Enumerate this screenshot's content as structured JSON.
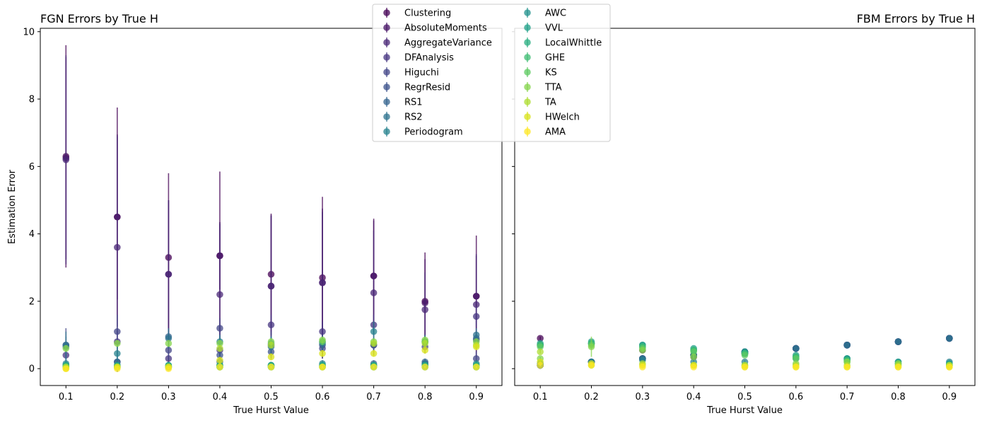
{
  "chart_data": [
    {
      "type": "scatter",
      "title": "FGN Errors by True H",
      "xlabel": "True Hurst Value",
      "ylabel": "Estimation Error",
      "xlim": [
        0.05,
        0.95
      ],
      "ylim": [
        -0.5,
        10.1
      ],
      "xticks": [
        "0.1",
        "0.2",
        "0.3",
        "0.4",
        "0.5",
        "0.6",
        "0.7",
        "0.8",
        "0.9"
      ],
      "yticks": [
        "0",
        "2",
        "4",
        "6",
        "8",
        "10"
      ],
      "x": [
        0.1,
        0.2,
        0.3,
        0.4,
        0.5,
        0.6,
        0.7,
        0.8,
        0.9
      ],
      "legend_position": "top-center",
      "series": [
        {
          "name": "Clustering",
          "color": "#440154",
          "y": [
            6.3,
            4.5,
            3.3,
            3.35,
            2.8,
            2.7,
            2.75,
            2.0,
            2.15
          ],
          "err": [
            3.3,
            3.25,
            2.5,
            2.5,
            1.8,
            2.4,
            1.7,
            1.45,
            1.8
          ]
        },
        {
          "name": "AbsoluteMoments",
          "color": "#471365",
          "y": [
            6.25,
            4.5,
            2.8,
            3.35,
            2.45,
            2.55,
            2.75,
            1.95,
            2.15
          ],
          "err": [
            3.0,
            2.45,
            2.2,
            1.0,
            2.1,
            2.2,
            1.65,
            1.3,
            1.2
          ]
        },
        {
          "name": "AggregateVariance",
          "color": "#482576",
          "y": [
            6.2,
            3.6,
            2.8,
            2.2,
            2.45,
            2.55,
            2.25,
            1.75,
            1.9
          ],
          "err": [
            3.1,
            3.3,
            2.2,
            2.1,
            2.1,
            2.1,
            1.85,
            1.1,
            1.5
          ]
        },
        {
          "name": "DFAnalysis",
          "color": "#463480",
          "y": [
            0.4,
            0.8,
            0.3,
            0.55,
            1.3,
            1.1,
            1.3,
            0.8,
            1.55
          ],
          "err": [
            0.3,
            0.3,
            0.2,
            0.3,
            0.3,
            0.3,
            0.3,
            0.2,
            0.3
          ]
        },
        {
          "name": "Higuchi",
          "color": "#414487",
          "y": [
            0.7,
            1.1,
            0.55,
            1.2,
            0.7,
            0.6,
            0.7,
            0.65,
            0.3
          ],
          "err": [
            0.5,
            0.5,
            0.3,
            0.3,
            0.4,
            0.3,
            0.2,
            0.2,
            0.2
          ]
        },
        {
          "name": "RegrResid",
          "color": "#3b528b",
          "y": [
            0.1,
            0.2,
            0.05,
            0.4,
            0.5,
            0.7,
            0.7,
            0.15,
            0.85
          ],
          "err": [
            0.1,
            0.1,
            0.05,
            0.1,
            0.2,
            0.2,
            0.2,
            0.1,
            0.2
          ]
        },
        {
          "name": "RS1",
          "color": "#33638d",
          "y": [
            0.65,
            0.2,
            0.95,
            0.2,
            0.1,
            0.8,
            0.15,
            0.2,
            0.9
          ],
          "err": [
            0.3,
            0.3,
            0.2,
            0.2,
            0.1,
            0.2,
            0.1,
            0.1,
            0.2
          ]
        },
        {
          "name": "RS2",
          "color": "#2c728e",
          "y": [
            0.7,
            0.1,
            0.9,
            0.1,
            0.65,
            0.75,
            0.1,
            0.15,
            1.0
          ],
          "err": [
            0.4,
            0.15,
            0.3,
            0.15,
            0.3,
            0.2,
            0.1,
            0.1,
            0.2
          ]
        },
        {
          "name": "Periodogram",
          "color": "#26828e",
          "y": [
            0.15,
            0.45,
            0.1,
            0.8,
            0.75,
            0.15,
            1.1,
            0.8,
            0.15
          ],
          "err": [
            0.15,
            0.2,
            0.1,
            0.2,
            0.2,
            0.1,
            0.3,
            0.2,
            0.1
          ]
        },
        {
          "name": "AWC",
          "color": "#21918c",
          "y": [
            0.1,
            0.05,
            0.05,
            0.1,
            0.1,
            0.1,
            0.1,
            0.1,
            0.1
          ],
          "err": [
            0.05,
            0.05,
            0.05,
            0.05,
            0.05,
            0.05,
            0.05,
            0.05,
            0.05
          ]
        },
        {
          "name": "VVL",
          "color": "#1fa088",
          "y": [
            0.05,
            0.05,
            0.05,
            0.05,
            0.05,
            0.05,
            0.05,
            0.05,
            0.05
          ],
          "err": [
            0.03,
            0.03,
            0.03,
            0.03,
            0.03,
            0.03,
            0.03,
            0.03,
            0.03
          ]
        },
        {
          "name": "LocalWhittle",
          "color": "#28ae80",
          "y": [
            0.1,
            0.1,
            0.1,
            0.1,
            0.1,
            0.1,
            0.1,
            0.1,
            0.1
          ],
          "err": [
            0.05,
            0.05,
            0.05,
            0.05,
            0.05,
            0.05,
            0.05,
            0.05,
            0.05
          ]
        },
        {
          "name": "GHE",
          "color": "#3fbc73",
          "y": [
            0.05,
            0.05,
            0.05,
            0.05,
            0.05,
            0.05,
            0.05,
            0.05,
            0.05
          ],
          "err": [
            0.03,
            0.03,
            0.03,
            0.03,
            0.03,
            0.03,
            0.03,
            0.03,
            0.03
          ]
        },
        {
          "name": "KS",
          "color": "#5ec962",
          "y": [
            0.05,
            0.05,
            0.05,
            0.05,
            0.05,
            0.8,
            0.05,
            0.8,
            0.05
          ],
          "err": [
            0.03,
            0.03,
            0.03,
            0.03,
            0.03,
            0.1,
            0.03,
            0.1,
            0.03
          ]
        },
        {
          "name": "TTA",
          "color": "#84d44b",
          "y": [
            0.6,
            0.75,
            0.75,
            0.75,
            0.8,
            0.85,
            0.8,
            0.85,
            0.8
          ],
          "err": [
            0.1,
            0.1,
            0.1,
            0.1,
            0.1,
            0.1,
            0.1,
            0.1,
            0.1
          ]
        },
        {
          "name": "TA",
          "color": "#addc30",
          "y": [
            0.05,
            0.05,
            0.05,
            0.6,
            0.7,
            0.05,
            0.75,
            0.75,
            0.7
          ],
          "err": [
            0.05,
            0.05,
            0.05,
            0.1,
            0.1,
            0.05,
            0.1,
            0.1,
            0.1
          ]
        },
        {
          "name": "HWelch",
          "color": "#d8e219",
          "y": [
            0.0,
            0.05,
            0.05,
            0.25,
            0.35,
            0.45,
            0.45,
            0.55,
            0.65
          ],
          "err": [
            0.05,
            0.05,
            0.05,
            0.1,
            0.1,
            0.1,
            0.1,
            0.1,
            0.1
          ]
        },
        {
          "name": "AMA",
          "color": "#fde725",
          "y": [
            0.0,
            0.0,
            0.0,
            0.05,
            0.05,
            0.05,
            0.05,
            0.05,
            0.05
          ],
          "err": [
            0.03,
            0.03,
            0.03,
            0.03,
            0.03,
            0.03,
            0.03,
            0.03,
            0.03
          ]
        }
      ]
    },
    {
      "type": "scatter",
      "title": "FBM Errors by True H",
      "xlabel": "True Hurst Value",
      "ylabel": "",
      "xlim": [
        0.05,
        0.95
      ],
      "ylim": [
        -0.5,
        10.1
      ],
      "xticks": [
        "0.1",
        "0.2",
        "0.3",
        "0.4",
        "0.5",
        "0.6",
        "0.7",
        "0.8",
        "0.9"
      ],
      "shared_y": true,
      "x": [
        0.1,
        0.2,
        0.3,
        0.4,
        0.5,
        0.6,
        0.7,
        0.8,
        0.9
      ],
      "series": [
        {
          "name": "Clustering",
          "color": "#440154",
          "y": [
            0.9,
            0.75,
            0.55,
            0.35,
            0.45,
            0.6,
            0.7,
            0.8,
            0.9
          ],
          "err": [
            0.05,
            0.05,
            0.05,
            0.05,
            0.05,
            0.05,
            0.05,
            0.05,
            0.05
          ]
        },
        {
          "name": "AbsoluteMoments",
          "color": "#471365",
          "y": [
            0.1,
            0.2,
            0.3,
            0.4,
            0.45,
            0.6,
            0.7,
            0.8,
            0.9
          ],
          "err": [
            0.05,
            0.05,
            0.05,
            0.05,
            0.05,
            0.05,
            0.05,
            0.05,
            0.05
          ]
        },
        {
          "name": "AggregateVariance",
          "color": "#482576",
          "y": [
            0.1,
            0.2,
            0.3,
            0.4,
            0.5,
            0.6,
            0.7,
            0.8,
            0.9
          ],
          "err": [
            0.05,
            0.05,
            0.05,
            0.05,
            0.05,
            0.05,
            0.05,
            0.05,
            0.05
          ]
        },
        {
          "name": "DFAnalysis",
          "color": "#463480",
          "y": [
            0.7,
            0.2,
            0.3,
            0.4,
            0.5,
            0.6,
            0.7,
            0.8,
            0.9
          ],
          "err": [
            0.05,
            0.05,
            0.05,
            0.05,
            0.05,
            0.05,
            0.05,
            0.05,
            0.05
          ]
        },
        {
          "name": "Higuchi",
          "color": "#414487",
          "y": [
            0.1,
            0.2,
            0.3,
            0.4,
            0.5,
            0.6,
            0.7,
            0.8,
            0.9
          ],
          "err": [
            0.05,
            0.05,
            0.05,
            0.05,
            0.05,
            0.05,
            0.05,
            0.05,
            0.05
          ]
        },
        {
          "name": "RegrResid",
          "color": "#3b528b",
          "y": [
            0.1,
            0.2,
            0.3,
            0.4,
            0.5,
            0.6,
            0.7,
            0.8,
            0.9
          ],
          "err": [
            0.05,
            0.05,
            0.05,
            0.05,
            0.05,
            0.05,
            0.05,
            0.05,
            0.05
          ]
        },
        {
          "name": "RS1",
          "color": "#33638d",
          "y": [
            0.1,
            0.2,
            0.3,
            0.4,
            0.5,
            0.6,
            0.7,
            0.8,
            0.9
          ],
          "err": [
            0.05,
            0.05,
            0.05,
            0.05,
            0.05,
            0.05,
            0.05,
            0.05,
            0.05
          ]
        },
        {
          "name": "RS2",
          "color": "#2c728e",
          "y": [
            0.1,
            0.2,
            0.3,
            0.4,
            0.5,
            0.6,
            0.7,
            0.8,
            0.9
          ],
          "err": [
            0.05,
            0.05,
            0.05,
            0.05,
            0.05,
            0.05,
            0.05,
            0.05,
            0.05
          ]
        },
        {
          "name": "Periodogram",
          "color": "#26828e",
          "y": [
            0.15,
            0.2,
            0.25,
            0.2,
            0.2,
            0.3,
            0.3,
            0.2,
            0.2
          ],
          "err": [
            0.05,
            0.05,
            0.05,
            0.05,
            0.05,
            0.05,
            0.05,
            0.05,
            0.05
          ]
        },
        {
          "name": "AWC",
          "color": "#21918c",
          "y": [
            0.7,
            0.75,
            0.7,
            0.55,
            0.45,
            0.35,
            0.3,
            0.15,
            0.15
          ],
          "err": [
            0.05,
            0.05,
            0.05,
            0.05,
            0.05,
            0.05,
            0.05,
            0.05,
            0.05
          ]
        },
        {
          "name": "VVL",
          "color": "#1fa088",
          "y": [
            0.75,
            0.8,
            0.7,
            0.6,
            0.5,
            0.4,
            0.3,
            0.2,
            0.15
          ],
          "err": [
            0.05,
            0.05,
            0.05,
            0.05,
            0.05,
            0.05,
            0.05,
            0.05,
            0.05
          ]
        },
        {
          "name": "LocalWhittle",
          "color": "#28ae80",
          "y": [
            0.7,
            0.75,
            0.65,
            0.55,
            0.45,
            0.35,
            0.25,
            0.15,
            0.1
          ],
          "err": [
            0.05,
            0.05,
            0.05,
            0.05,
            0.05,
            0.05,
            0.05,
            0.05,
            0.05
          ]
        },
        {
          "name": "GHE",
          "color": "#3fbc73",
          "y": [
            0.7,
            0.75,
            0.65,
            0.55,
            0.45,
            0.35,
            0.25,
            0.15,
            0.1
          ],
          "err": [
            0.05,
            0.05,
            0.05,
            0.05,
            0.05,
            0.05,
            0.05,
            0.05,
            0.05
          ]
        },
        {
          "name": "KS",
          "color": "#5ec962",
          "y": [
            0.65,
            0.7,
            0.6,
            0.5,
            0.4,
            0.3,
            0.2,
            0.1,
            0.1
          ],
          "err": [
            0.05,
            0.05,
            0.05,
            0.05,
            0.05,
            0.05,
            0.05,
            0.05,
            0.05
          ]
        },
        {
          "name": "TTA",
          "color": "#84d44b",
          "y": [
            0.3,
            0.65,
            0.55,
            0.35,
            0.1,
            0.15,
            0.2,
            0.15,
            0.1
          ],
          "err": [
            0.05,
            0.3,
            0.05,
            0.05,
            0.05,
            0.05,
            0.05,
            0.05,
            0.05
          ]
        },
        {
          "name": "TA",
          "color": "#addc30",
          "y": [
            0.5,
            0.1,
            0.15,
            0.1,
            0.1,
            0.1,
            0.1,
            0.1,
            0.1
          ],
          "err": [
            0.05,
            0.05,
            0.05,
            0.05,
            0.05,
            0.05,
            0.05,
            0.05,
            0.05
          ]
        },
        {
          "name": "HWelch",
          "color": "#d8e219",
          "y": [
            0.2,
            0.15,
            0.1,
            0.1,
            0.05,
            0.05,
            0.05,
            0.05,
            0.05
          ],
          "err": [
            0.05,
            0.05,
            0.05,
            0.05,
            0.05,
            0.05,
            0.05,
            0.05,
            0.05
          ]
        },
        {
          "name": "AMA",
          "color": "#fde725",
          "y": [
            0.1,
            0.1,
            0.05,
            0.05,
            0.05,
            0.05,
            0.05,
            0.05,
            0.05
          ],
          "err": [
            0.03,
            0.03,
            0.03,
            0.03,
            0.03,
            0.03,
            0.03,
            0.03,
            0.03
          ]
        }
      ]
    }
  ]
}
